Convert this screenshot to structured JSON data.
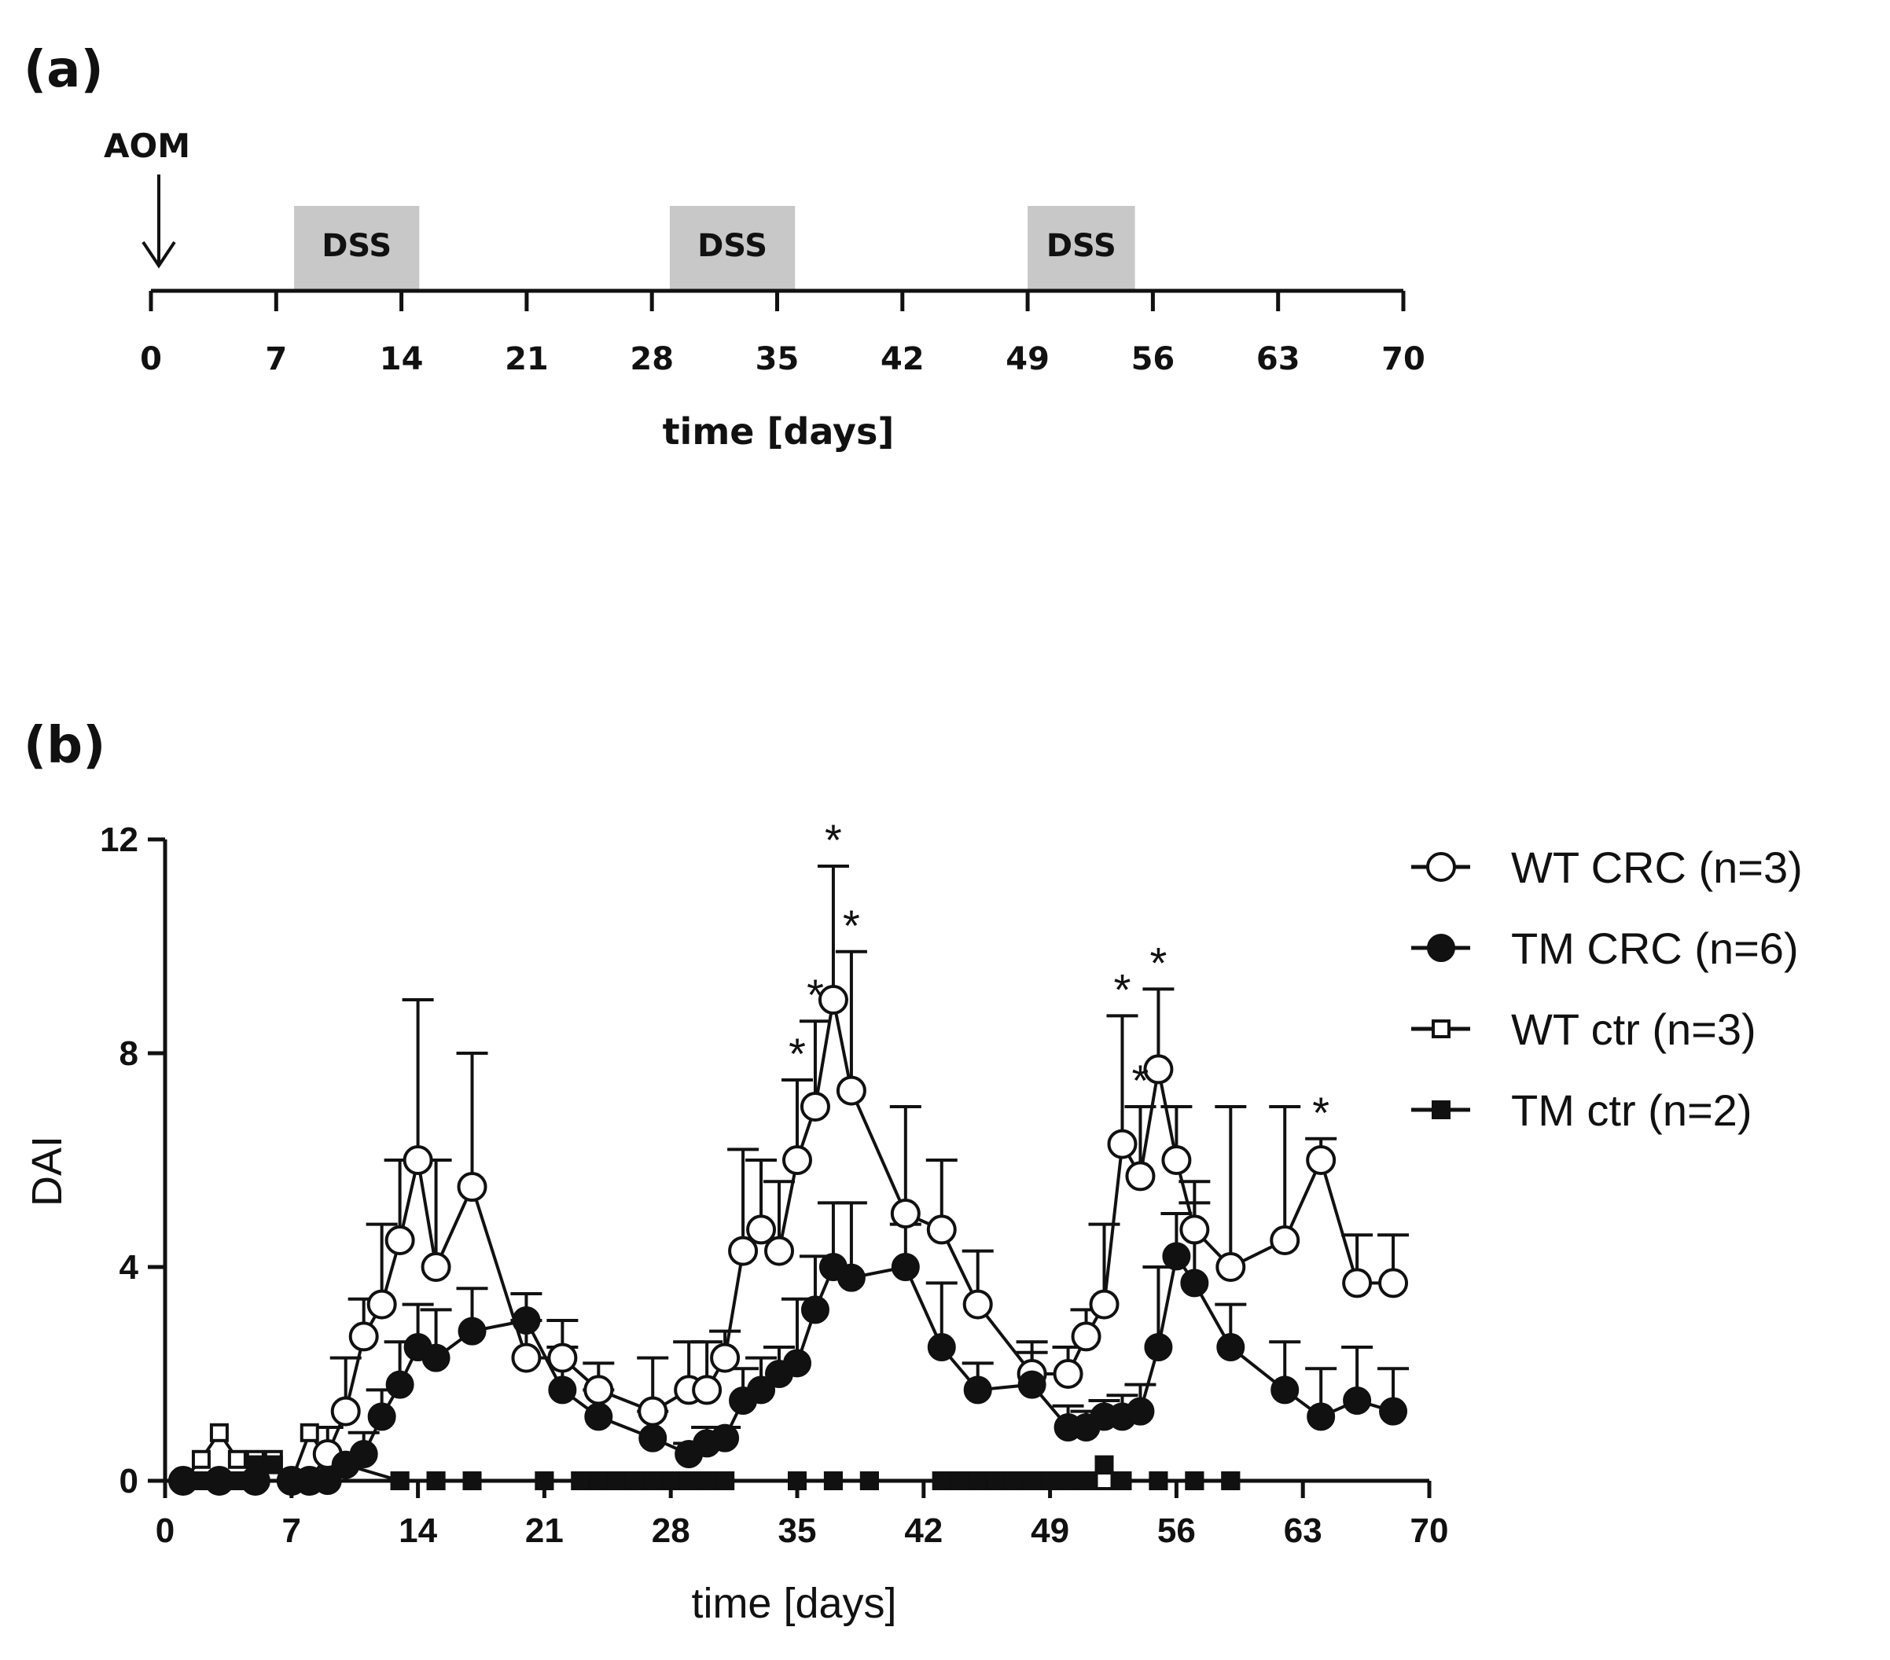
{
  "panel_a": {
    "label": "(a)",
    "aom_label": "AOM",
    "dss_label": "DSS",
    "dss_periods": [
      [
        8,
        15
      ],
      [
        29,
        36
      ],
      [
        49,
        55
      ]
    ],
    "ticks": [
      "0",
      "7",
      "14",
      "21",
      "28",
      "35",
      "42",
      "49",
      "56",
      "63",
      "70"
    ],
    "xlabel": "time [days]"
  },
  "panel_b": {
    "label": "(b)"
  },
  "chart_data": {
    "type": "line",
    "title": "",
    "xlabel": "time [days]",
    "ylabel": "DAI",
    "xlim": [
      0,
      70
    ],
    "ylim": [
      0,
      12
    ],
    "xticks": [
      0,
      7,
      14,
      21,
      28,
      35,
      42,
      49,
      56,
      63,
      70
    ],
    "yticks": [
      0,
      4,
      8,
      12
    ],
    "xtick_labels": [
      "0",
      "7",
      "14",
      "21",
      "28",
      "35",
      "42",
      "49",
      "56",
      "63",
      "70"
    ],
    "ytick_labels": [
      "0",
      "4",
      "8",
      "12"
    ],
    "legend_position": "right",
    "series": [
      {
        "name": "WT CRC (n=3)",
        "marker": "open-circle",
        "x": [
          1,
          3,
          5,
          7,
          8,
          9,
          10,
          11,
          12,
          13,
          14,
          15,
          17,
          20,
          22,
          24,
          27,
          29,
          30,
          31,
          32,
          33,
          34,
          35,
          36,
          37,
          38,
          41,
          43,
          45,
          48,
          50,
          51,
          52,
          53,
          54,
          55,
          56,
          57,
          59,
          62,
          64,
          66,
          68
        ],
        "y": [
          0,
          0,
          0,
          0,
          0,
          0.5,
          1.3,
          2.7,
          3.3,
          4.5,
          6.0,
          4.0,
          5.5,
          2.3,
          2.3,
          1.7,
          1.3,
          1.7,
          1.7,
          2.3,
          4.3,
          4.7,
          4.3,
          6.0,
          7.0,
          9.0,
          7.3,
          5.0,
          4.7,
          3.3,
          2.0,
          2.0,
          2.7,
          3.3,
          6.3,
          5.7,
          7.7,
          6.0,
          4.7,
          4.0,
          4.5,
          6.0,
          3.7,
          3.7
        ],
        "err": [
          0,
          0,
          0,
          0,
          0,
          0.5,
          1.0,
          0.7,
          1.5,
          1.5,
          3.0,
          2.0,
          2.5,
          0.7,
          0.7,
          0.5,
          1.0,
          0.9,
          0.9,
          0.5,
          1.9,
          1.3,
          1.3,
          1.5,
          1.6,
          2.5,
          2.6,
          2.0,
          1.3,
          1.0,
          0.6,
          0.5,
          0.5,
          1.5,
          2.4,
          1.3,
          1.5,
          1.0,
          0.9,
          3.0,
          2.5,
          0.4,
          0.9,
          0.9
        ]
      },
      {
        "name": "TM CRC (n=6)",
        "marker": "filled-circle",
        "x": [
          1,
          3,
          5,
          7,
          8,
          9,
          10,
          11,
          12,
          13,
          14,
          15,
          17,
          20,
          22,
          24,
          27,
          29,
          30,
          31,
          32,
          33,
          34,
          35,
          36,
          37,
          38,
          41,
          43,
          45,
          48,
          50,
          51,
          52,
          53,
          54,
          55,
          56,
          57,
          59,
          62,
          64,
          66,
          68
        ],
        "y": [
          0,
          0,
          0,
          0,
          0,
          0,
          0.3,
          0.5,
          1.2,
          1.8,
          2.5,
          2.3,
          2.8,
          3.0,
          1.7,
          1.2,
          0.8,
          0.5,
          0.7,
          0.8,
          1.5,
          1.7,
          2.0,
          2.2,
          3.2,
          4.0,
          3.8,
          4.0,
          2.5,
          1.7,
          1.8,
          1.0,
          1.0,
          1.2,
          1.2,
          1.3,
          2.5,
          4.2,
          3.7,
          2.5,
          1.7,
          1.2,
          1.5,
          1.3
        ],
        "err": [
          0,
          0,
          0,
          0,
          0,
          0,
          0.2,
          0.4,
          0.5,
          0.8,
          0.8,
          0.9,
          0.8,
          0.5,
          0.8,
          0.5,
          0.5,
          0.2,
          0.3,
          0.2,
          0.6,
          0.6,
          0.5,
          1.2,
          1.0,
          1.2,
          1.4,
          0.8,
          1.2,
          0.5,
          0.6,
          0.4,
          0.3,
          0.3,
          0.4,
          0.5,
          1.5,
          0.8,
          1.5,
          0.8,
          0.9,
          0.9,
          1.0,
          0.8
        ]
      },
      {
        "name": "WT ctr (n=3)",
        "marker": "open-square",
        "x": [
          1,
          2,
          3,
          4,
          5,
          6,
          7,
          8,
          9,
          13,
          15,
          17,
          21,
          23,
          24,
          25,
          26,
          27,
          28,
          29,
          30,
          31,
          35,
          37,
          39,
          43,
          44,
          45,
          46,
          47,
          48,
          49,
          50,
          51,
          52,
          53,
          55,
          57,
          59
        ],
        "y": [
          0,
          0.4,
          0.9,
          0.4,
          0.4,
          0.4,
          0,
          0.9,
          0.4,
          0,
          0,
          0,
          0,
          0,
          0,
          0,
          0,
          0,
          0,
          0,
          0,
          0,
          0,
          0,
          0,
          0,
          0,
          0,
          0,
          0,
          0,
          0,
          0,
          0,
          0,
          0,
          0,
          0,
          0
        ]
      },
      {
        "name": "TM ctr (n=2)",
        "marker": "filled-square",
        "x": [
          1,
          2,
          3,
          4,
          5,
          6,
          7,
          8,
          9,
          13,
          15,
          17,
          21,
          23,
          24,
          25,
          26,
          27,
          28,
          29,
          30,
          31,
          35,
          37,
          39,
          43,
          44,
          45,
          46,
          47,
          48,
          49,
          50,
          51,
          52,
          53,
          55,
          57,
          59
        ],
        "y": [
          0,
          0,
          0,
          0,
          0.3,
          0.3,
          0,
          0,
          0,
          0,
          0,
          0,
          0,
          0,
          0,
          0,
          0,
          0,
          0,
          0,
          0,
          0,
          0,
          0,
          0,
          0,
          0,
          0,
          0,
          0,
          0,
          0,
          0,
          0,
          0.3,
          0,
          0,
          0,
          0
        ]
      }
    ],
    "significance": [
      {
        "x": 37,
        "y": 11.5,
        "label": "*"
      },
      {
        "x": 38,
        "y": 9.9,
        "label": "*"
      },
      {
        "x": 36,
        "y": 8.6,
        "label": "*"
      },
      {
        "x": 35,
        "y": 7.5,
        "label": "*"
      },
      {
        "x": 53,
        "y": 8.7,
        "label": "*"
      },
      {
        "x": 55,
        "y": 9.2,
        "label": "*"
      },
      {
        "x": 54,
        "y": 7.0,
        "label": "*"
      },
      {
        "x": 64,
        "y": 6.4,
        "label": "*"
      }
    ]
  }
}
